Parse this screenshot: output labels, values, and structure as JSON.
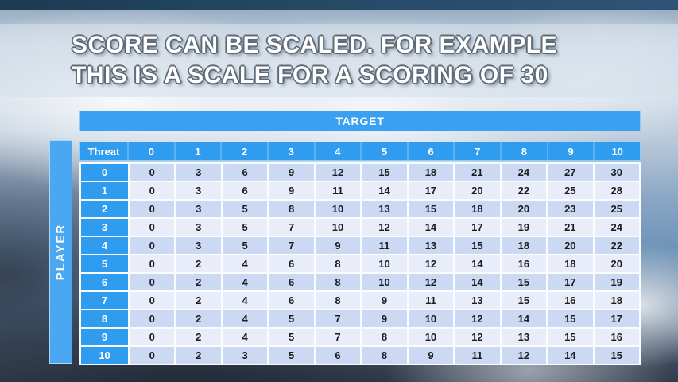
{
  "slide": {
    "title_line1": "SCORE CAN BE SCALED. FOR EXAMPLE",
    "title_line2": "THIS IS A SCALE FOR A SCORING OF 30"
  },
  "table": {
    "target_label": "TARGET",
    "player_label": "PLAYER",
    "threat_label": "Threat",
    "column_headers": [
      "0",
      "1",
      "2",
      "3",
      "4",
      "5",
      "6",
      "7",
      "8",
      "9",
      "10"
    ],
    "rows": [
      {
        "label": "0",
        "cells": [
          0,
          3,
          6,
          9,
          12,
          15,
          18,
          21,
          24,
          27,
          30
        ]
      },
      {
        "label": "1",
        "cells": [
          0,
          3,
          6,
          9,
          11,
          14,
          17,
          20,
          22,
          25,
          28
        ]
      },
      {
        "label": "2",
        "cells": [
          0,
          3,
          5,
          8,
          10,
          13,
          15,
          18,
          20,
          23,
          25
        ]
      },
      {
        "label": "3",
        "cells": [
          0,
          3,
          5,
          7,
          10,
          12,
          14,
          17,
          19,
          21,
          24
        ]
      },
      {
        "label": "4",
        "cells": [
          0,
          3,
          5,
          7,
          9,
          11,
          13,
          15,
          18,
          20,
          22
        ]
      },
      {
        "label": "5",
        "cells": [
          0,
          2,
          4,
          6,
          8,
          10,
          12,
          14,
          16,
          18,
          20
        ]
      },
      {
        "label": "6",
        "cells": [
          0,
          2,
          4,
          6,
          8,
          10,
          12,
          14,
          15,
          17,
          19
        ]
      },
      {
        "label": "7",
        "cells": [
          0,
          2,
          4,
          6,
          8,
          9,
          11,
          13,
          15,
          16,
          18
        ]
      },
      {
        "label": "8",
        "cells": [
          0,
          2,
          4,
          5,
          7,
          9,
          10,
          12,
          14,
          15,
          17
        ]
      },
      {
        "label": "9",
        "cells": [
          0,
          2,
          4,
          5,
          7,
          8,
          10,
          12,
          13,
          15,
          16
        ]
      },
      {
        "label": "10",
        "cells": [
          0,
          2,
          3,
          5,
          6,
          8,
          9,
          11,
          12,
          14,
          15
        ]
      }
    ]
  },
  "colors": {
    "accent_blue": "#2f9cf0",
    "row_even": "#cbd9f2",
    "row_odd": "#e9edf9",
    "top_bar_navy": "#254964",
    "separator_white": "#fafcff"
  }
}
